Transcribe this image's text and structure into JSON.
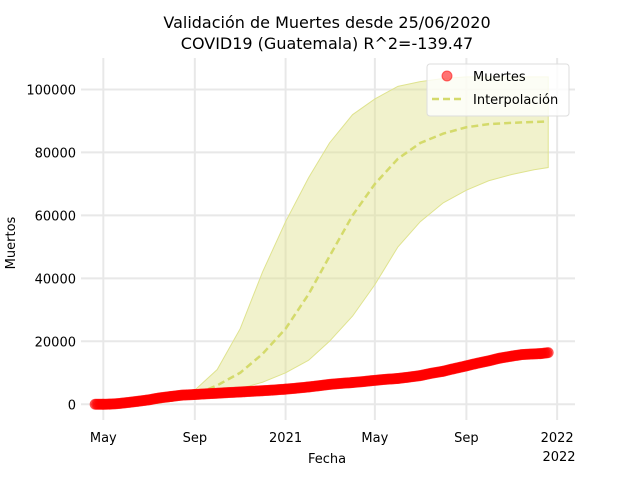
{
  "chart_data": {
    "type": "line",
    "title_line1": "Validación de Muertes desde 25/06/2020",
    "title_line2": "COVID19 (Guatemala) R^2=-139.47",
    "xlabel": "Fecha",
    "ylabel": "Muertos",
    "xlim": [
      "2020-04-01",
      "2022-01-25"
    ],
    "ylim": [
      -5000,
      110000
    ],
    "grid": true,
    "legend_position": "top-right",
    "x_ticks": [
      {
        "date": "2020-05-01",
        "label": "May"
      },
      {
        "date": "2020-09-01",
        "label": "Sep"
      },
      {
        "date": "2021-01-01",
        "label": "2021"
      },
      {
        "date": "2021-05-01",
        "label": "May"
      },
      {
        "date": "2021-09-01",
        "label": "Sep"
      },
      {
        "date": "2022-01-01",
        "label": "2022"
      }
    ],
    "x_offset_label": "2022",
    "y_ticks": [
      0,
      20000,
      40000,
      60000,
      80000,
      100000
    ],
    "series": [
      {
        "name": "Muertes",
        "style": "markers",
        "color": "#ff0000",
        "points": [
          [
            "2020-04-20",
            0
          ],
          [
            "2020-05-01",
            0
          ],
          [
            "2020-05-10",
            50
          ],
          [
            "2020-05-20",
            200
          ],
          [
            "2020-06-01",
            500
          ],
          [
            "2020-06-15",
            900
          ],
          [
            "2020-07-01",
            1400
          ],
          [
            "2020-07-15",
            2000
          ],
          [
            "2020-08-01",
            2500
          ],
          [
            "2020-08-15",
            2900
          ],
          [
            "2020-09-01",
            3100
          ],
          [
            "2020-09-15",
            3300
          ],
          [
            "2020-10-01",
            3500
          ],
          [
            "2020-10-15",
            3700
          ],
          [
            "2020-11-01",
            3900
          ],
          [
            "2020-11-15",
            4100
          ],
          [
            "2020-12-01",
            4300
          ],
          [
            "2020-12-15",
            4500
          ],
          [
            "2021-01-01",
            4800
          ],
          [
            "2021-01-15",
            5100
          ],
          [
            "2021-02-01",
            5500
          ],
          [
            "2021-02-15",
            5900
          ],
          [
            "2021-03-01",
            6300
          ],
          [
            "2021-03-15",
            6600
          ],
          [
            "2021-04-01",
            6900
          ],
          [
            "2021-04-15",
            7200
          ],
          [
            "2021-05-01",
            7600
          ],
          [
            "2021-05-15",
            7900
          ],
          [
            "2021-06-01",
            8200
          ],
          [
            "2021-06-15",
            8600
          ],
          [
            "2021-07-01",
            9100
          ],
          [
            "2021-07-15",
            9800
          ],
          [
            "2021-08-01",
            10500
          ],
          [
            "2021-08-15",
            11300
          ],
          [
            "2021-09-01",
            12200
          ],
          [
            "2021-09-15",
            13000
          ],
          [
            "2021-10-01",
            13800
          ],
          [
            "2021-10-15",
            14600
          ],
          [
            "2021-11-01",
            15300
          ],
          [
            "2021-11-15",
            15800
          ],
          [
            "2021-12-01",
            16000
          ],
          [
            "2021-12-10",
            16100
          ],
          [
            "2021-12-20",
            16400
          ]
        ]
      },
      {
        "name": "Interpolación",
        "style": "dashed",
        "color": "#d4da6b",
        "band_color": "#dfe38f",
        "points": [
          [
            "2020-06-25",
            0,
            0,
            0
          ],
          [
            "2020-07-15",
            600,
            500,
            800
          ],
          [
            "2020-08-01",
            1200,
            1000,
            1700
          ],
          [
            "2020-09-01",
            3000,
            2200,
            4500
          ],
          [
            "2020-10-01",
            6000,
            3500,
            11000
          ],
          [
            "2020-11-01",
            10000,
            5000,
            24000
          ],
          [
            "2020-12-01",
            16000,
            7000,
            42000
          ],
          [
            "2021-01-01",
            24000,
            10000,
            58000
          ],
          [
            "2021-02-01",
            35000,
            14000,
            72000
          ],
          [
            "2021-03-01",
            47000,
            20000,
            83000
          ],
          [
            "2021-04-01",
            60000,
            28000,
            92000
          ],
          [
            "2021-05-01",
            70000,
            38000,
            97000
          ],
          [
            "2021-06-01",
            78000,
            50000,
            101000
          ],
          [
            "2021-07-01",
            83000,
            58000,
            102500
          ],
          [
            "2021-08-01",
            86000,
            64000,
            103500
          ],
          [
            "2021-09-01",
            88000,
            68000,
            104000
          ],
          [
            "2021-10-01",
            89000,
            71000,
            104000
          ],
          [
            "2021-11-01",
            89400,
            73000,
            104000
          ],
          [
            "2021-12-01",
            89700,
            74500,
            104000
          ],
          [
            "2021-12-20",
            89800,
            75200,
            104000
          ]
        ]
      }
    ]
  }
}
